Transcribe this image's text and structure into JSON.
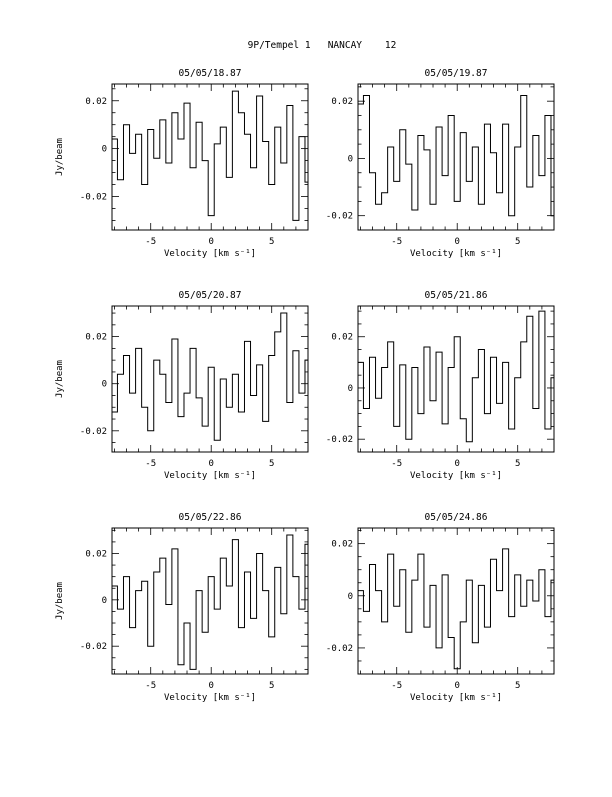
{
  "page": {
    "title": "9P/Tempel 1   NANCAY    12"
  },
  "chart_data": [
    {
      "type": "line",
      "title": "05/05/18.87",
      "xlabel": "Velocity [km s⁻¹]",
      "ylabel": "Jy/beam",
      "xlim": [
        -8.2,
        8.0
      ],
      "ylim": [
        -0.034,
        0.027
      ],
      "xticks": [
        -5,
        0,
        5
      ],
      "xtick_labels": [
        "-5",
        "0",
        "5"
      ],
      "yticks": [
        -0.02,
        0,
        0.02
      ],
      "ytick_labels": [
        "-0.02",
        "0",
        "0.02"
      ],
      "grid": false,
      "style": "step",
      "series": [
        {
          "x": [
            -8.0,
            -7.5,
            -7.0,
            -6.5,
            -6.0,
            -5.5,
            -5.0,
            -4.5,
            -4.0,
            -3.5,
            -3.0,
            -2.5,
            -2.0,
            -1.5,
            -1.0,
            -0.5,
            0.0,
            0.5,
            1.0,
            1.5,
            2.0,
            2.5,
            3.0,
            3.5,
            4.0,
            4.5,
            5.0,
            5.5,
            6.0,
            6.5,
            7.0,
            7.5,
            8.0
          ],
          "y": [
            0.004,
            -0.013,
            0.01,
            -0.002,
            0.006,
            -0.015,
            0.008,
            -0.004,
            0.012,
            -0.006,
            0.015,
            0.004,
            0.019,
            -0.008,
            0.011,
            -0.005,
            -0.028,
            0.002,
            0.009,
            -0.012,
            0.024,
            0.015,
            0.006,
            -0.008,
            0.022,
            0.003,
            -0.015,
            0.009,
            -0.006,
            0.018,
            -0.03,
            0.005,
            -0.014
          ]
        }
      ]
    },
    {
      "type": "line",
      "title": "05/05/19.87",
      "xlabel": "Velocity [km s⁻¹]",
      "ylabel": "",
      "xlim": [
        -8.2,
        8.0
      ],
      "ylim": [
        -0.025,
        0.026
      ],
      "xticks": [
        -5,
        0,
        5
      ],
      "xtick_labels": [
        "-5",
        "0",
        "5"
      ],
      "yticks": [
        -0.02,
        0,
        0.02
      ],
      "ytick_labels": [
        "-0.02",
        "0",
        "0.02"
      ],
      "grid": false,
      "style": "step",
      "series": [
        {
          "x": [
            -8.0,
            -7.5,
            -7.0,
            -6.5,
            -6.0,
            -5.5,
            -5.0,
            -4.5,
            -4.0,
            -3.5,
            -3.0,
            -2.5,
            -2.0,
            -1.5,
            -1.0,
            -0.5,
            0.0,
            0.5,
            1.0,
            1.5,
            2.0,
            2.5,
            3.0,
            3.5,
            4.0,
            4.5,
            5.0,
            5.5,
            6.0,
            6.5,
            7.0,
            7.5,
            8.0
          ],
          "y": [
            0.019,
            0.022,
            -0.005,
            -0.016,
            -0.012,
            0.004,
            -0.008,
            0.01,
            -0.002,
            -0.018,
            0.008,
            0.003,
            -0.016,
            0.011,
            -0.006,
            0.015,
            -0.015,
            0.009,
            -0.008,
            0.004,
            -0.016,
            0.012,
            0.002,
            -0.012,
            0.012,
            -0.02,
            0.004,
            0.022,
            -0.01,
            0.008,
            -0.006,
            0.015,
            -0.02
          ]
        }
      ]
    },
    {
      "type": "line",
      "title": "05/05/20.87",
      "xlabel": "Velocity [km s⁻¹]",
      "ylabel": "Jy/beam",
      "xlim": [
        -8.2,
        8.0
      ],
      "ylim": [
        -0.029,
        0.033
      ],
      "xticks": [
        -5,
        0,
        5
      ],
      "xtick_labels": [
        "-5",
        "0",
        "5"
      ],
      "yticks": [
        -0.02,
        0,
        0.02
      ],
      "ytick_labels": [
        "-0.02",
        "0",
        "0.02"
      ],
      "grid": false,
      "style": "step",
      "series": [
        {
          "x": [
            -8.0,
            -7.5,
            -7.0,
            -6.5,
            -6.0,
            -5.5,
            -5.0,
            -4.5,
            -4.0,
            -3.5,
            -3.0,
            -2.5,
            -2.0,
            -1.5,
            -1.0,
            -0.5,
            0.0,
            0.5,
            1.0,
            1.5,
            2.0,
            2.5,
            3.0,
            3.5,
            4.0,
            4.5,
            5.0,
            5.5,
            6.0,
            6.5,
            7.0,
            7.5,
            8.0
          ],
          "y": [
            -0.012,
            0.004,
            0.012,
            -0.004,
            0.015,
            -0.01,
            -0.02,
            0.01,
            0.004,
            -0.008,
            0.019,
            -0.014,
            -0.004,
            0.015,
            -0.006,
            -0.018,
            0.007,
            -0.024,
            0.002,
            -0.01,
            0.004,
            -0.012,
            0.018,
            -0.005,
            0.008,
            -0.016,
            0.012,
            0.022,
            0.03,
            -0.008,
            0.014,
            -0.004,
            0.01
          ]
        }
      ]
    },
    {
      "type": "line",
      "title": "05/05/21.86",
      "xlabel": "Velocity [km s⁻¹]",
      "ylabel": "",
      "xlim": [
        -8.2,
        8.0
      ],
      "ylim": [
        -0.025,
        0.032
      ],
      "xticks": [
        -5,
        0,
        5
      ],
      "xtick_labels": [
        "-5",
        "0",
        "5"
      ],
      "yticks": [
        -0.02,
        0,
        0.02
      ],
      "ytick_labels": [
        "-0.02",
        "0",
        "0.02"
      ],
      "grid": false,
      "style": "step",
      "series": [
        {
          "x": [
            -8.0,
            -7.5,
            -7.0,
            -6.5,
            -6.0,
            -5.5,
            -5.0,
            -4.5,
            -4.0,
            -3.5,
            -3.0,
            -2.5,
            -2.0,
            -1.5,
            -1.0,
            -0.5,
            0.0,
            0.5,
            1.0,
            1.5,
            2.0,
            2.5,
            3.0,
            3.5,
            4.0,
            4.5,
            5.0,
            5.5,
            6.0,
            6.5,
            7.0,
            7.5,
            8.0
          ],
          "y": [
            0.01,
            -0.008,
            0.012,
            -0.004,
            0.008,
            0.018,
            -0.015,
            0.009,
            -0.02,
            0.008,
            -0.01,
            0.016,
            -0.005,
            0.014,
            -0.014,
            0.008,
            0.02,
            -0.012,
            -0.021,
            0.004,
            0.015,
            -0.01,
            0.012,
            -0.006,
            0.01,
            -0.016,
            0.004,
            0.018,
            0.028,
            -0.008,
            0.03,
            -0.016,
            0.004
          ]
        }
      ]
    },
    {
      "type": "line",
      "title": "05/05/22.86",
      "xlabel": "Velocity [km s⁻¹]",
      "ylabel": "Jy/beam",
      "xlim": [
        -8.2,
        8.0
      ],
      "ylim": [
        -0.032,
        0.031
      ],
      "xticks": [
        -5,
        0,
        5
      ],
      "xtick_labels": [
        "-5",
        "0",
        "5"
      ],
      "yticks": [
        -0.02,
        0,
        0.02
      ],
      "ytick_labels": [
        "-0.02",
        "0",
        "0.02"
      ],
      "grid": false,
      "style": "step",
      "series": [
        {
          "x": [
            -8.0,
            -7.5,
            -7.0,
            -6.5,
            -6.0,
            -5.5,
            -5.0,
            -4.5,
            -4.0,
            -3.5,
            -3.0,
            -2.5,
            -2.0,
            -1.5,
            -1.0,
            -0.5,
            0.0,
            0.5,
            1.0,
            1.5,
            2.0,
            2.5,
            3.0,
            3.5,
            4.0,
            4.5,
            5.0,
            5.5,
            6.0,
            6.5,
            7.0,
            7.5,
            8.0
          ],
          "y": [
            0.006,
            -0.004,
            0.01,
            -0.012,
            0.004,
            0.008,
            -0.02,
            0.012,
            0.018,
            -0.002,
            0.022,
            -0.028,
            -0.01,
            -0.03,
            0.004,
            -0.014,
            0.01,
            -0.004,
            0.018,
            0.006,
            0.026,
            -0.012,
            0.012,
            -0.008,
            0.02,
            0.004,
            -0.016,
            0.014,
            -0.006,
            0.028,
            0.01,
            -0.004,
            0.024
          ]
        }
      ]
    },
    {
      "type": "line",
      "title": "05/05/24.86",
      "xlabel": "Velocity [km s⁻¹]",
      "ylabel": "",
      "xlim": [
        -8.2,
        8.0
      ],
      "ylim": [
        -0.03,
        0.026
      ],
      "xticks": [
        -5,
        0,
        5
      ],
      "xtick_labels": [
        "-5",
        "0",
        "5"
      ],
      "yticks": [
        -0.02,
        0,
        0.02
      ],
      "ytick_labels": [
        "-0.02",
        "0",
        "0.02"
      ],
      "grid": false,
      "style": "step",
      "series": [
        {
          "x": [
            -8.0,
            -7.5,
            -7.0,
            -6.5,
            -6.0,
            -5.5,
            -5.0,
            -4.5,
            -4.0,
            -3.5,
            -3.0,
            -2.5,
            -2.0,
            -1.5,
            -1.0,
            -0.5,
            0.0,
            0.5,
            1.0,
            1.5,
            2.0,
            2.5,
            3.0,
            3.5,
            4.0,
            4.5,
            5.0,
            5.5,
            6.0,
            6.5,
            7.0,
            7.5,
            8.0
          ],
          "y": [
            0.002,
            -0.006,
            0.012,
            0.002,
            -0.01,
            0.016,
            -0.004,
            0.01,
            -0.014,
            0.006,
            0.016,
            -0.012,
            0.004,
            -0.02,
            0.008,
            -0.016,
            -0.028,
            -0.01,
            0.006,
            -0.018,
            0.004,
            -0.012,
            0.014,
            0.002,
            0.018,
            -0.008,
            0.008,
            -0.004,
            0.006,
            -0.002,
            0.01,
            -0.008,
            0.006
          ]
        }
      ]
    }
  ]
}
